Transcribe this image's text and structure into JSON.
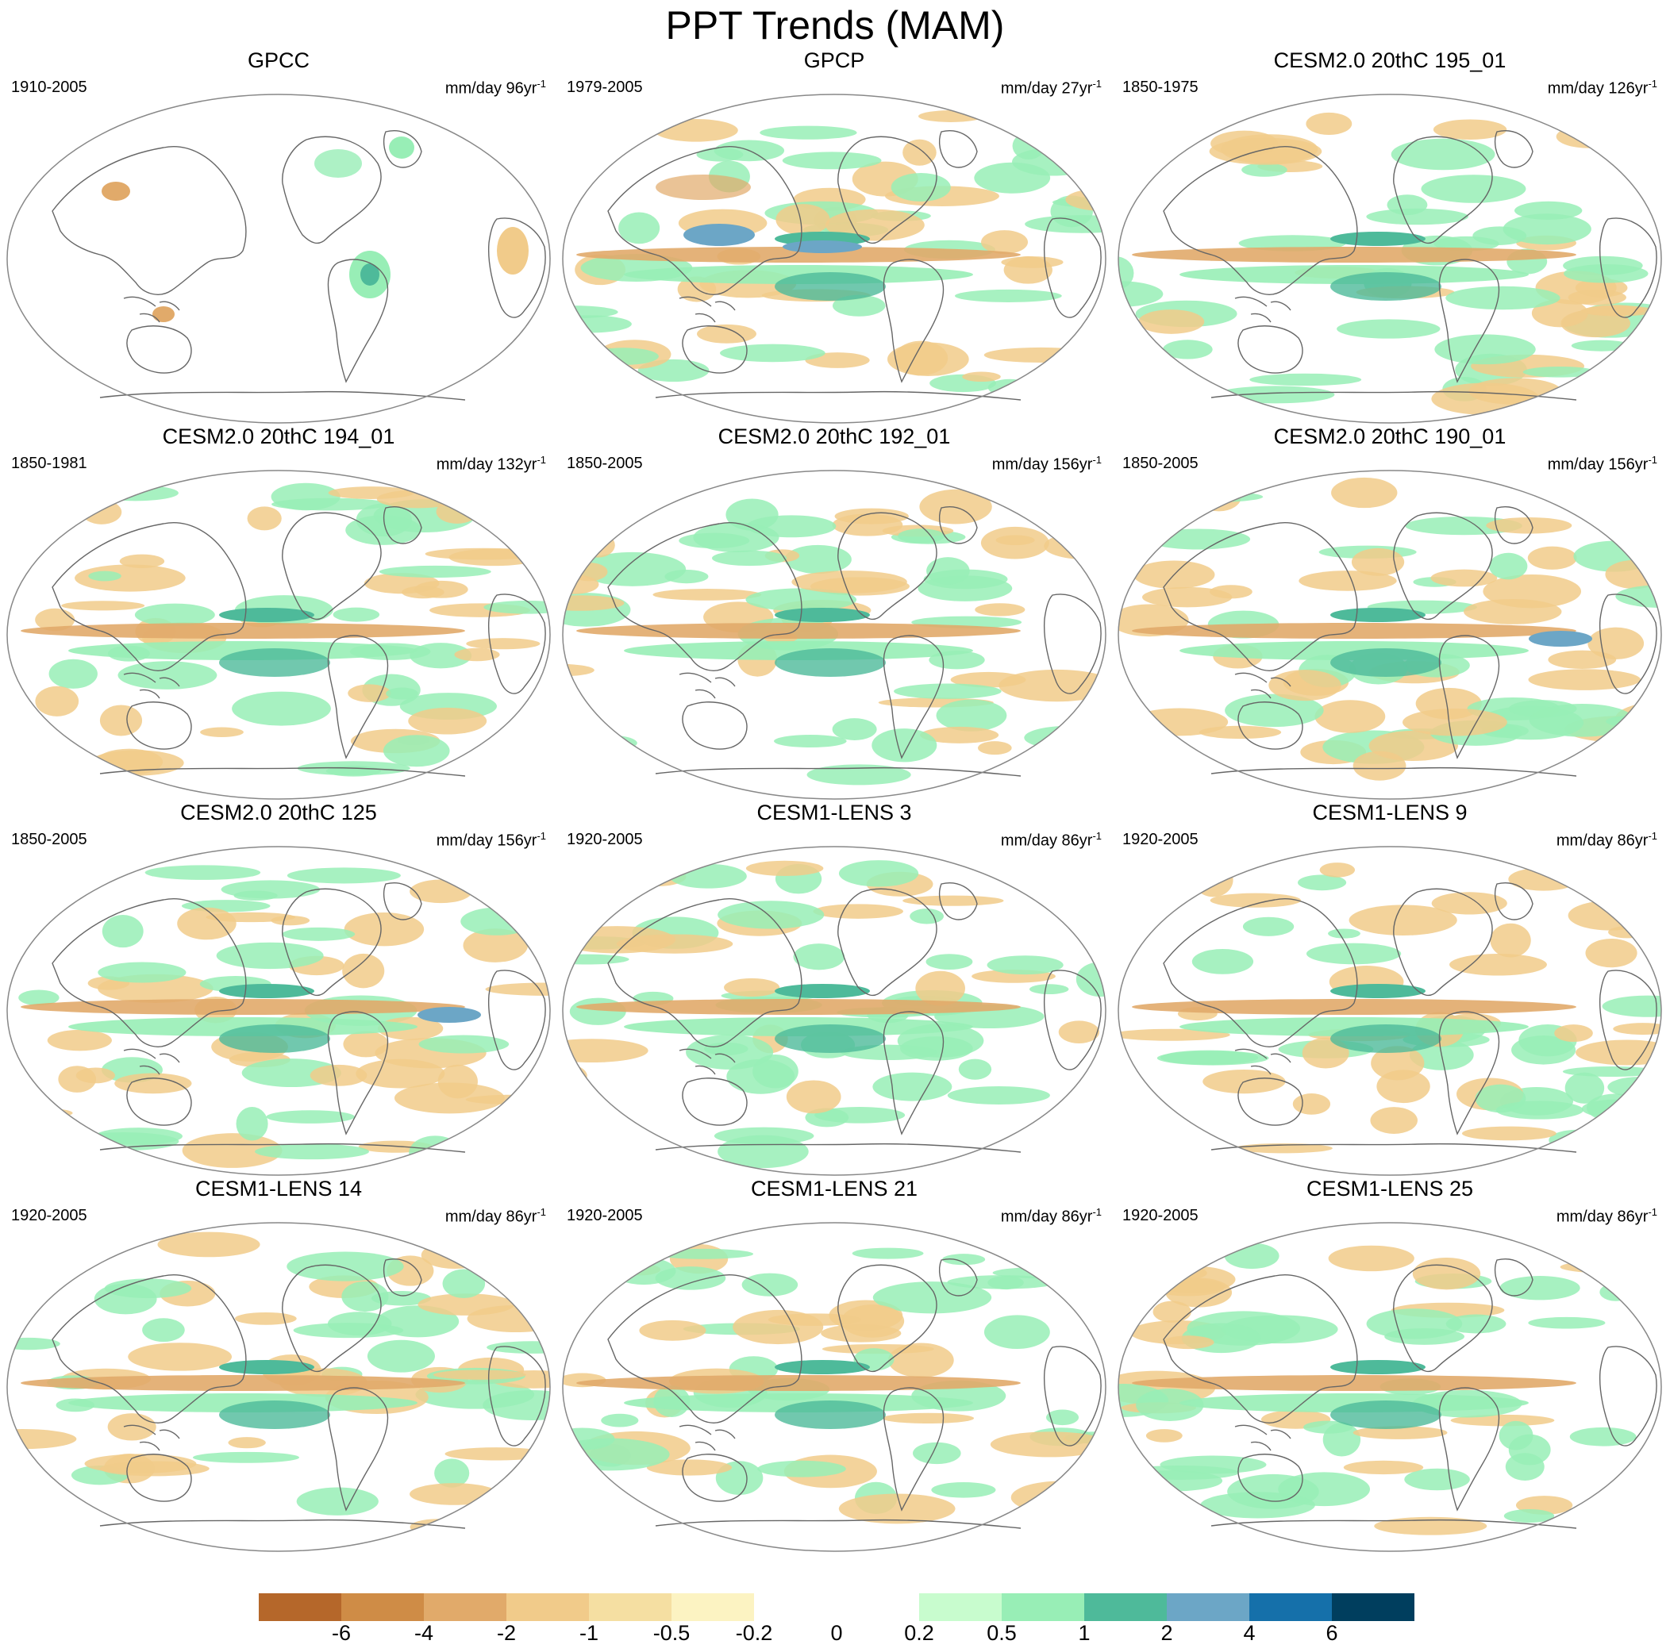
{
  "title": "PPT Trends (MAM)",
  "panels": [
    {
      "title": "GPCC",
      "period": "1910-2005",
      "units": "mm/day 96yr",
      "units_exp": "-1",
      "coverage": "land"
    },
    {
      "title": "GPCP",
      "period": "1979-2005",
      "units": "mm/day 27yr",
      "units_exp": "-1",
      "coverage": "full"
    },
    {
      "title": "CESM2.0 20thC 195_01",
      "period": "1850-1975",
      "units": "mm/day 126yr",
      "units_exp": "-1",
      "coverage": "full"
    },
    {
      "title": "CESM2.0 20thC 194_01",
      "period": "1850-1981",
      "units": "mm/day 132yr",
      "units_exp": "-1",
      "coverage": "full"
    },
    {
      "title": "CESM2.0 20thC 192_01",
      "period": "1850-2005",
      "units": "mm/day 156yr",
      "units_exp": "-1",
      "coverage": "full"
    },
    {
      "title": "CESM2.0 20thC 190_01",
      "period": "1850-2005",
      "units": "mm/day 156yr",
      "units_exp": "-1",
      "coverage": "full"
    },
    {
      "title": "CESM2.0 20thC 125",
      "period": "1850-2005",
      "units": "mm/day 156yr",
      "units_exp": "-1",
      "coverage": "full"
    },
    {
      "title": "CESM1-LENS 3",
      "period": "1920-2005",
      "units": "mm/day 86yr",
      "units_exp": "-1",
      "coverage": "full"
    },
    {
      "title": "CESM1-LENS 9",
      "period": "1920-2005",
      "units": "mm/day 86yr",
      "units_exp": "-1",
      "coverage": "full"
    },
    {
      "title": "CESM1-LENS 14",
      "period": "1920-2005",
      "units": "mm/day 86yr",
      "units_exp": "-1",
      "coverage": "full"
    },
    {
      "title": "CESM1-LENS 21",
      "period": "1920-2005",
      "units": "mm/day 86yr",
      "units_exp": "-1",
      "coverage": "full"
    },
    {
      "title": "CESM1-LENS 25",
      "period": "1920-2005",
      "units": "mm/day 86yr",
      "units_exp": "-1",
      "coverage": "full"
    }
  ],
  "colorbar": {
    "colors": [
      "#b5672a",
      "#cf8c46",
      "#e1aa6a",
      "#f1cb8a",
      "#f5dfa2",
      "#fcf3c2",
      "#ffffff",
      "#ffffff",
      "#c8fcce",
      "#98eeb6",
      "#4eba9a",
      "#6ca6c6",
      "#1570aa",
      "#003e5e"
    ],
    "labels": [
      "-6",
      "-4",
      "-2",
      "-1",
      "-0.5",
      "-0.2",
      "0",
      "0.2",
      "0.5",
      "1",
      "2",
      "4",
      "6"
    ]
  },
  "colors": {
    "map_outline": "#888888",
    "coast": "#666666",
    "dry": "#f1cb8a",
    "dry_strong": "#e1aa6a",
    "wet": "#98eeb6",
    "wet_strong": "#4eba9a",
    "wet_max": "#6ca6c6"
  }
}
